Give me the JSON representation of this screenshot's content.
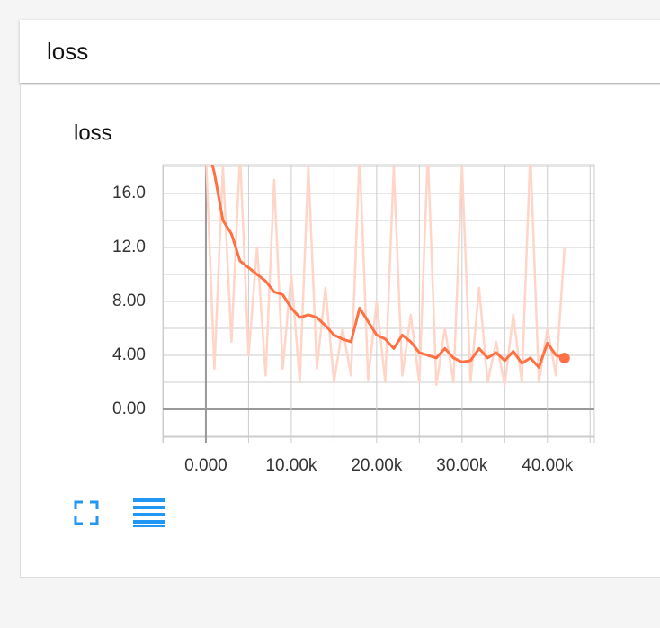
{
  "header": {
    "title": "loss"
  },
  "chart_data": {
    "type": "line",
    "title": "loss",
    "x": [
      0,
      1000,
      2000,
      3000,
      4000,
      5000,
      6000,
      7000,
      8000,
      9000,
      10000,
      11000,
      12000,
      13000,
      14000,
      15000,
      16000,
      17000,
      18000,
      19000,
      20000,
      21000,
      22000,
      23000,
      24000,
      25000,
      26000,
      27000,
      28000,
      29000,
      30000,
      31000,
      32000,
      33000,
      34000,
      35000,
      36000,
      37000,
      38000,
      39000,
      40000,
      41000,
      42000
    ],
    "series": [
      {
        "color": "#ff7043",
        "values": [
          20,
          17.5,
          14,
          13,
          11,
          10.5,
          10,
          9.5,
          8.7,
          8.5,
          7.5,
          6.8,
          7,
          6.8,
          6.2,
          5.5,
          5.2,
          5,
          7.5,
          6.5,
          5.5,
          5.2,
          4.5,
          5.5,
          5,
          4.2,
          4,
          3.8,
          4.5,
          3.8,
          3.5,
          3.6,
          4.5,
          3.8,
          4.2,
          3.6,
          4.3,
          3.4,
          3.8,
          3.1,
          4.9,
          4,
          3.8
        ]
      },
      {
        "color": "#ffd5c8",
        "values": [
          19,
          3,
          18,
          5,
          19,
          4,
          12,
          2.5,
          17,
          3,
          10,
          2,
          18,
          3,
          9,
          2,
          6,
          2.5,
          19,
          2.2,
          8,
          2,
          18,
          2.5,
          7,
          2,
          19,
          1.8,
          6,
          2,
          18,
          2,
          9,
          2,
          5,
          1.8,
          7,
          2,
          19,
          2,
          6,
          2.5,
          12
        ]
      }
    ],
    "xlim": [
      -5050,
      45500
    ],
    "ylim": [
      -2.07,
      18.13
    ],
    "xticks": [
      {
        "value": 0,
        "label": "0.000"
      },
      {
        "value": 10000,
        "label": "10.00k"
      },
      {
        "value": 20000,
        "label": "20.00k"
      },
      {
        "value": 30000,
        "label": "30.00k"
      },
      {
        "value": 40000,
        "label": "40.00k"
      }
    ],
    "yticks": [
      {
        "value": 0,
        "label": "0.00"
      },
      {
        "value": 4,
        "label": "4.00"
      },
      {
        "value": 8,
        "label": "8.00"
      },
      {
        "value": 12,
        "label": "12.0"
      },
      {
        "value": 16,
        "label": "16.0"
      }
    ],
    "grid": true
  }
}
